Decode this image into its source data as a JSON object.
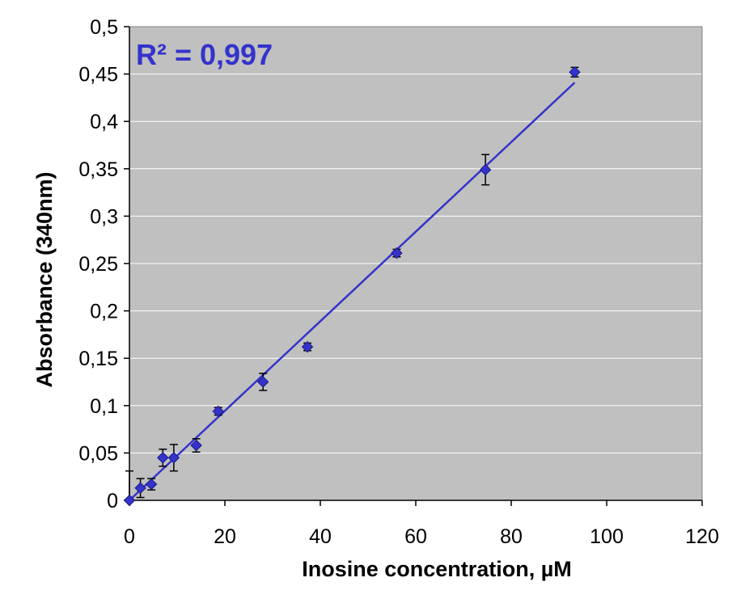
{
  "chart_data": {
    "type": "scatter",
    "title": "",
    "xlabel": "Inosine concentration, µM",
    "ylabel": "Absorbance (340nm)",
    "xlim": [
      0,
      120
    ],
    "ylim": [
      0,
      0.5
    ],
    "x_ticks": [
      0,
      20,
      40,
      60,
      80,
      100,
      120
    ],
    "y_ticks": [
      0,
      0.05,
      0.1,
      0.15,
      0.2,
      0.25,
      0.3,
      0.35,
      0.4,
      0.45,
      0.5
    ],
    "x_tick_labels": [
      "0",
      "20",
      "40",
      "60",
      "80",
      "100",
      "120"
    ],
    "y_tick_labels": [
      "0",
      "0,05",
      "0,1",
      "0,15",
      "0,2",
      "0,25",
      "0,3",
      "0,35",
      "0,4",
      "0,45",
      "0,5"
    ],
    "grid": "horizontal",
    "legend": "none",
    "plot_background": "#c0c0c0",
    "series": [
      {
        "color": "#3333cc",
        "x": [
          0,
          2.3,
          4.6,
          7.0,
          9.3,
          14.0,
          18.6,
          28.0,
          37.3,
          56.0,
          74.6,
          93.3
        ],
        "y": [
          0,
          0.013,
          0.017,
          0.045,
          0.045,
          0.058,
          0.094,
          0.125,
          0.162,
          0.261,
          0.349,
          0.452
        ],
        "y_err": [
          0.031,
          0.01,
          0.006,
          0.009,
          0.014,
          0.007,
          0.004,
          0.009,
          0.004,
          0.004,
          0.016,
          0.005
        ]
      }
    ],
    "trendline": {
      "color": "#3333cc",
      "x": [
        0,
        93.3
      ],
      "y": [
        0,
        0.441
      ]
    },
    "annotation": "R² = 0,997",
    "annotation_color": "#3333cc"
  }
}
